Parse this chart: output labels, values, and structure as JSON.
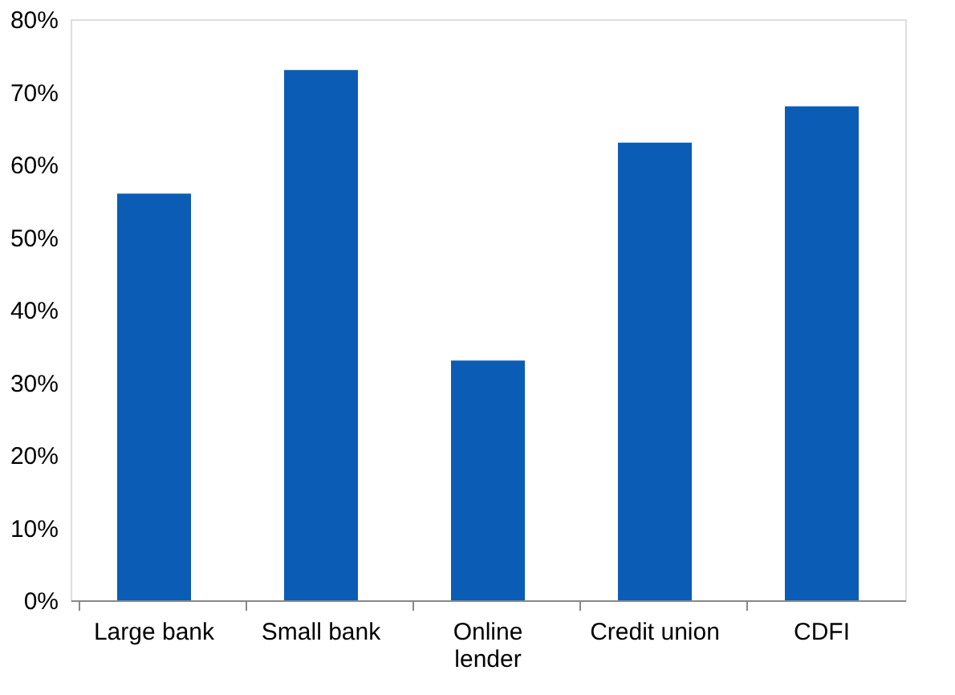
{
  "chart_data": {
    "type": "bar",
    "categories": [
      "Large bank",
      "Small bank",
      "Online\nlender",
      "Credit union",
      "CDFI"
    ],
    "values": [
      56,
      73,
      33,
      63,
      68
    ],
    "color": "#0b5cb5",
    "ylim": [
      0,
      80
    ],
    "yticks": [
      {
        "value": 0,
        "label": "0%"
      },
      {
        "value": 10,
        "label": "10%"
      },
      {
        "value": 20,
        "label": "20%"
      },
      {
        "value": 30,
        "label": "30%"
      },
      {
        "value": 40,
        "label": "40%"
      },
      {
        "value": 50,
        "label": "50%"
      },
      {
        "value": 60,
        "label": "60%"
      },
      {
        "value": 70,
        "label": "70%"
      },
      {
        "value": 80,
        "label": "80%"
      }
    ],
    "grid": false
  }
}
